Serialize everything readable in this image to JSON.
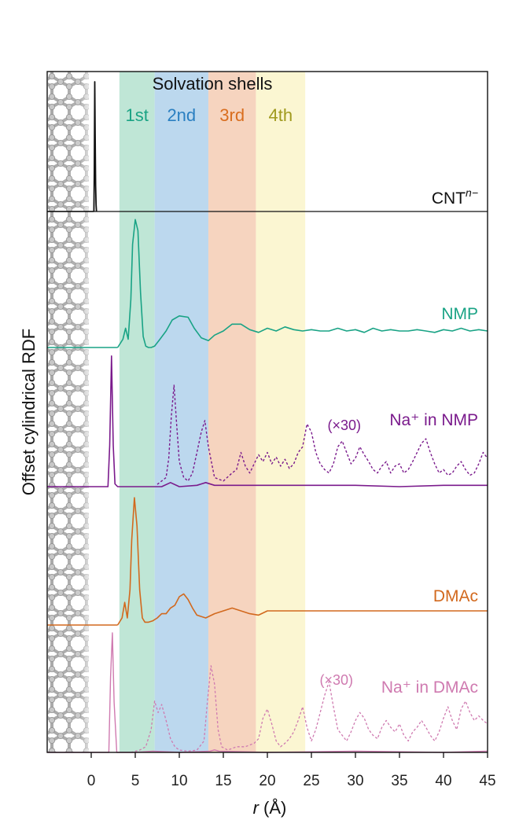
{
  "chart_data": {
    "type": "line",
    "xlabel_var": "r",
    "xlabel_unit": "(Å)",
    "ylabel": "Offset cylindrical RDF",
    "xlim": [
      -5,
      45
    ],
    "xticks": [
      0,
      5,
      10,
      15,
      20,
      25,
      30,
      35,
      40,
      45
    ],
    "shells": {
      "title": "Solvation shells",
      "regions": [
        {
          "label": "1st",
          "x0": 3.2,
          "x1": 7.2,
          "color": "#bfe6d6",
          "text_color": "#1aa384"
        },
        {
          "label": "2nd",
          "x0": 7.2,
          "x1": 13.3,
          "color": "#bcd8ee",
          "text_color": "#2a7fc1"
        },
        {
          "label": "3rd",
          "x0": 13.3,
          "x1": 18.7,
          "color": "#f6d4bf",
          "text_color": "#d96e1f"
        },
        {
          "label": "4th",
          "x0": 18.7,
          "x1": 24.3,
          "color": "#fbf6d2",
          "text_color": "#a09a1e"
        }
      ]
    },
    "cnt": {
      "name_base": "CNT",
      "name_sup": "n−",
      "color": "#111111",
      "x": [
        0.3,
        0.35,
        0.4,
        0.45,
        0.5,
        0.55,
        0.6
      ],
      "y": [
        0.0,
        0.3,
        1.0,
        0.6,
        0.2,
        0.05,
        0.0
      ]
    },
    "series": [
      {
        "name": "NMP",
        "color": "#19a385",
        "dashed": false,
        "x": [
          3.0,
          3.6,
          3.9,
          4.2,
          4.5,
          4.7,
          5.0,
          5.3,
          5.6,
          5.9,
          6.2,
          6.5,
          6.8,
          7.2,
          7.8,
          8.5,
          9.2,
          10.0,
          11.0,
          11.7,
          12.5,
          13.3,
          14.0,
          15.0,
          16.0,
          17.0,
          18.0,
          19.0,
          20.0,
          21.0,
          22.0,
          23.0,
          24.0,
          25.0,
          26.0,
          27.0,
          28.0,
          29.0,
          30.0,
          31.0,
          32.0,
          33.0,
          34.0,
          35.0,
          36.0,
          37.0,
          38.0,
          39.0,
          40.0,
          41.0,
          42.0,
          43.0,
          44.0,
          45.0
        ],
        "y": [
          0.0,
          0.06,
          0.14,
          0.06,
          0.35,
          0.75,
          0.93,
          0.85,
          0.4,
          0.08,
          0.01,
          0.0,
          0.0,
          0.01,
          0.06,
          0.12,
          0.2,
          0.23,
          0.22,
          0.14,
          0.07,
          0.05,
          0.09,
          0.12,
          0.17,
          0.17,
          0.13,
          0.11,
          0.14,
          0.12,
          0.15,
          0.13,
          0.12,
          0.13,
          0.12,
          0.12,
          0.14,
          0.12,
          0.13,
          0.11,
          0.14,
          0.12,
          0.13,
          0.12,
          0.12,
          0.13,
          0.12,
          0.11,
          0.13,
          0.12,
          0.14,
          0.12,
          0.13,
          0.12
        ]
      },
      {
        "name": "Na⁺ in NMP",
        "color": "#7a1a8c",
        "dashed": false,
        "x": [
          0.0,
          1.9,
          2.1,
          2.3,
          2.5,
          2.7,
          3.0,
          8.0,
          9.0,
          10.0,
          12.0,
          13.0,
          14.0,
          20.0,
          25.0,
          30.0,
          35.0,
          40.0,
          45.0
        ],
        "y": [
          0.0,
          0.0,
          0.3,
          0.95,
          0.3,
          0.02,
          0.0,
          0.0,
          0.03,
          0.0,
          0.01,
          0.03,
          0.01,
          0.01,
          0.01,
          0.01,
          0.0,
          0.01,
          0.01
        ]
      },
      {
        "name": "Na⁺ in NMP (×30)",
        "multiplier": "(×30)",
        "color": "#7a1a8c",
        "dashed": true,
        "x": [
          7.5,
          8.0,
          8.5,
          8.8,
          9.1,
          9.4,
          9.7,
          10.0,
          10.5,
          11.0,
          11.5,
          12.0,
          12.5,
          12.9,
          13.3,
          14.0,
          15.0,
          16.0,
          16.5,
          17.0,
          17.5,
          18.0,
          18.5,
          19.0,
          19.5,
          20.0,
          20.5,
          21.0,
          21.5,
          22.0,
          22.5,
          23.0,
          23.5,
          24.0,
          24.5,
          25.0,
          25.5,
          26.0,
          26.5,
          27.0,
          27.5,
          28.0,
          28.5,
          29.0,
          29.5,
          30.0,
          30.5,
          31.0,
          31.5,
          32.0,
          32.5,
          33.0,
          33.5,
          34.0,
          34.5,
          35.0,
          35.5,
          36.0,
          36.5,
          37.0,
          37.5,
          38.0,
          38.5,
          39.0,
          39.5,
          40.0,
          40.5,
          41.0,
          41.5,
          42.0,
          42.5,
          43.0,
          43.5,
          44.0,
          44.5,
          45.0
        ],
        "y": [
          0.02,
          0.05,
          0.08,
          0.25,
          0.62,
          0.89,
          0.55,
          0.22,
          0.08,
          0.05,
          0.12,
          0.3,
          0.48,
          0.58,
          0.35,
          0.08,
          0.05,
          0.12,
          0.15,
          0.3,
          0.18,
          0.12,
          0.2,
          0.28,
          0.22,
          0.3,
          0.2,
          0.26,
          0.18,
          0.24,
          0.16,
          0.2,
          0.3,
          0.35,
          0.55,
          0.48,
          0.3,
          0.2,
          0.15,
          0.12,
          0.2,
          0.35,
          0.4,
          0.3,
          0.2,
          0.25,
          0.35,
          0.28,
          0.22,
          0.15,
          0.12,
          0.18,
          0.22,
          0.12,
          0.18,
          0.2,
          0.12,
          0.15,
          0.22,
          0.3,
          0.38,
          0.42,
          0.3,
          0.2,
          0.12,
          0.15,
          0.1,
          0.12,
          0.18,
          0.22,
          0.15,
          0.1,
          0.12,
          0.2,
          0.3,
          0.25
        ]
      },
      {
        "name": "DMAc",
        "color": "#d2691e",
        "dashed": false,
        "x": [
          3.0,
          3.5,
          3.8,
          4.1,
          4.4,
          4.6,
          4.9,
          5.2,
          5.5,
          5.8,
          6.1,
          6.5,
          7.0,
          7.5,
          8.0,
          8.5,
          9.0,
          9.5,
          10.0,
          10.5,
          11.0,
          11.5,
          12.0,
          13.0,
          14.0,
          15.0,
          16.0,
          17.0,
          18.0,
          19.0,
          20.0,
          22.0,
          24.0,
          26.0,
          28.0,
          30.0,
          32.0,
          34.0,
          36.0,
          38.0,
          40.0,
          42.0,
          44.0,
          45.0
        ],
        "y": [
          0.0,
          0.05,
          0.16,
          0.05,
          0.25,
          0.6,
          0.9,
          0.7,
          0.25,
          0.05,
          0.02,
          0.02,
          0.03,
          0.05,
          0.08,
          0.08,
          0.12,
          0.14,
          0.2,
          0.22,
          0.18,
          0.12,
          0.07,
          0.05,
          0.08,
          0.1,
          0.12,
          0.1,
          0.08,
          0.07,
          0.1,
          0.1,
          0.1,
          0.1,
          0.1,
          0.1,
          0.1,
          0.1,
          0.1,
          0.1,
          0.1,
          0.1,
          0.1,
          0.1
        ]
      },
      {
        "name": "Na⁺ in DMAc",
        "color": "#cf7ab0",
        "dashed": false,
        "x": [
          0.0,
          2.0,
          2.2,
          2.4,
          2.6,
          2.9,
          5.0,
          7.0,
          10.0,
          13.5,
          14.0,
          14.5,
          20.0,
          30.0,
          40.0,
          45.0
        ],
        "y": [
          0.0,
          0.0,
          0.6,
          0.95,
          0.4,
          0.0,
          0.0,
          0.01,
          0.0,
          0.01,
          0.02,
          0.01,
          0.0,
          0.01,
          0.0,
          0.01
        ]
      },
      {
        "name": "Na⁺ in DMAc (×30)",
        "multiplier": "(×30)",
        "color": "#cf7ab0",
        "dashed": true,
        "x": [
          4.5,
          5.5,
          6.2,
          6.8,
          7.2,
          7.6,
          8.0,
          8.5,
          9.0,
          9.5,
          10.0,
          11.0,
          12.0,
          12.8,
          13.2,
          13.6,
          14.0,
          14.4,
          14.8,
          15.5,
          16.5,
          17.5,
          18.5,
          19.0,
          19.5,
          20.0,
          20.5,
          21.0,
          21.5,
          22.0,
          22.5,
          23.0,
          23.5,
          24.0,
          24.5,
          25.0,
          25.5,
          26.0,
          26.5,
          27.0,
          27.5,
          28.0,
          28.5,
          29.0,
          29.5,
          30.0,
          30.5,
          31.0,
          31.5,
          32.0,
          32.5,
          33.0,
          33.5,
          34.0,
          34.5,
          35.0,
          35.5,
          36.0,
          36.5,
          37.0,
          37.5,
          38.0,
          38.5,
          39.0,
          39.5,
          40.0,
          40.5,
          41.0,
          41.5,
          42.0,
          42.5,
          43.0,
          43.5,
          44.0,
          44.5,
          45.0
        ],
        "y": [
          0.0,
          0.02,
          0.05,
          0.2,
          0.45,
          0.35,
          0.42,
          0.28,
          0.12,
          0.05,
          0.02,
          0.01,
          0.02,
          0.1,
          0.45,
          0.76,
          0.6,
          0.2,
          0.05,
          0.02,
          0.05,
          0.05,
          0.08,
          0.12,
          0.3,
          0.38,
          0.25,
          0.1,
          0.05,
          0.08,
          0.12,
          0.18,
          0.28,
          0.4,
          0.22,
          0.1,
          0.2,
          0.35,
          0.5,
          0.62,
          0.4,
          0.2,
          0.15,
          0.1,
          0.18,
          0.28,
          0.35,
          0.3,
          0.2,
          0.15,
          0.12,
          0.22,
          0.28,
          0.22,
          0.18,
          0.25,
          0.15,
          0.1,
          0.18,
          0.22,
          0.28,
          0.22,
          0.15,
          0.1,
          0.18,
          0.3,
          0.4,
          0.28,
          0.2,
          0.38,
          0.45,
          0.35,
          0.28,
          0.32,
          0.28,
          0.25
        ]
      }
    ]
  }
}
